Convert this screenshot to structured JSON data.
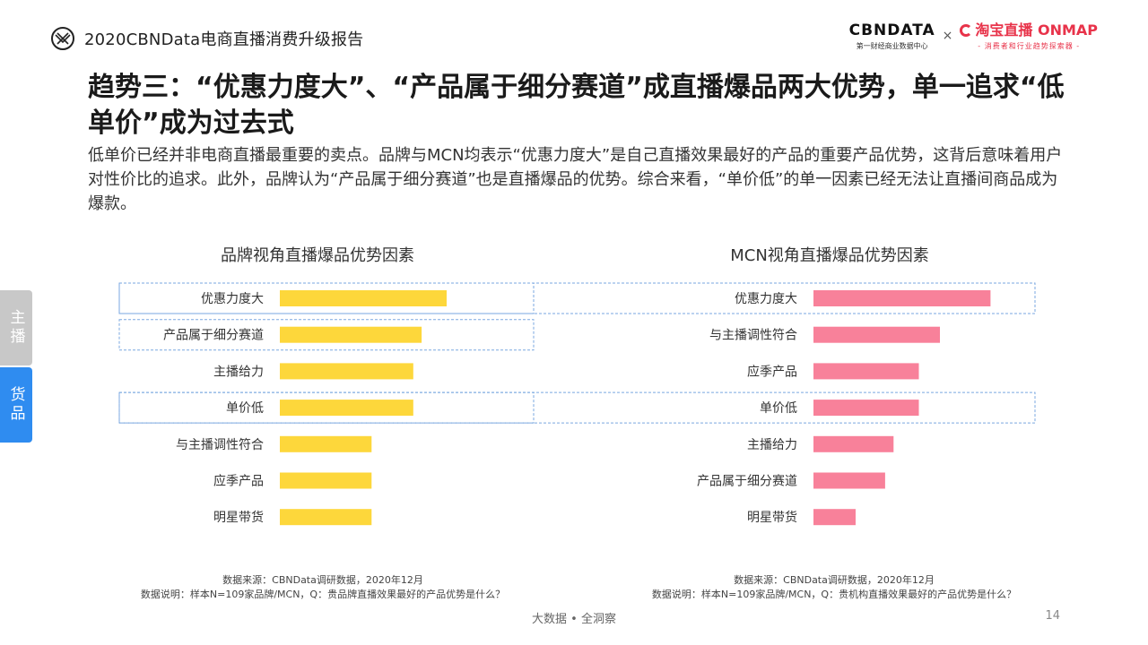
{
  "header": {
    "report_title": "2020CBNData电商直播消费升级报告",
    "brand_left_name": "CBNDATA",
    "brand_left_sub": "第一财经商业数据中心",
    "brand_times": "×",
    "brand_right_name": "淘宝直播 ONMAP",
    "brand_right_sub": "- 消费者和行业趋势探索器 -"
  },
  "title": "趋势三：“优惠力度大”、“产品属于细分赛道”成直播爆品两大优势，单一追求“低单价”成为过去式",
  "description": "低单价已经并非电商直播最重要的卖点。品牌与MCN均表示“优惠力度大”是自己直播效果最好的产品的重要产品优势，这背后意味着用户对性价比的追求。此外，品牌认为“产品属于细分赛道”也是直播爆品的优势。综合来看，“单价低”的单一因素已经无法让直播间商品成为爆款。",
  "side_tabs": [
    {
      "label": "主播",
      "active": false
    },
    {
      "label": "货品",
      "active": true
    }
  ],
  "colors": {
    "brand_bar": "#fdd73b",
    "mcn_bar": "#f8819a",
    "highlight_border": "#7aa7e0",
    "active_tab": "#2f8cf0",
    "inactive_tab": "#c8c8c8"
  },
  "chart_data": [
    {
      "type": "bar",
      "orientation": "horizontal",
      "title": "品牌视角直播爆品优势因素",
      "categories": [
        "优惠力度大",
        "产品属于细分赛道",
        "主播给力",
        "单价低",
        "与主播调性符合",
        "应季产品",
        "明星带货"
      ],
      "values": [
        40,
        34,
        32,
        32,
        22,
        22,
        22
      ],
      "highlighted": [
        "优惠力度大",
        "产品属于细分赛道",
        "单价低"
      ],
      "xlim": [
        0,
        100
      ],
      "axis_visible": false,
      "source": "数据来源：CBNData调研数据，2020年12月",
      "note": "数据说明：样本N=109家品牌/MCN，Q：贵品牌直播效果最好的产品优势是什么？"
    },
    {
      "type": "bar",
      "orientation": "horizontal",
      "title": "MCN视角直播爆品优势因素",
      "categories": [
        "优惠力度大",
        "与主播调性符合",
        "应季产品",
        "单价低",
        "主播给力",
        "产品属于细分赛道",
        "明星带货"
      ],
      "values": [
        42,
        30,
        25,
        25,
        19,
        17,
        10
      ],
      "highlighted": [
        "优惠力度大",
        "单价低"
      ],
      "xlim": [
        0,
        100
      ],
      "axis_visible": false,
      "source": "数据来源：CBNData调研数据，2020年12月",
      "note": "数据说明：样本N=109家品牌/MCN，Q：贵机构直播效果最好的产品优势是什么？"
    }
  ],
  "footer": {
    "center": "大数据 • 全洞察",
    "page": "14"
  }
}
